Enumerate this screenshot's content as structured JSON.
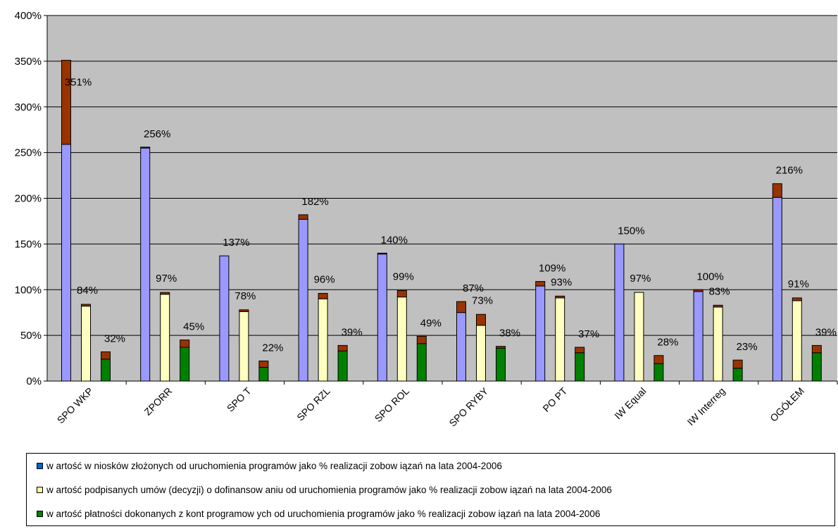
{
  "chart_data": {
    "type": "bar",
    "stacked_components": true,
    "categories": [
      "SPO WKP",
      "ZPORR",
      "SPO T",
      "SPO RZL",
      "SPO ROL",
      "SPO RYBY",
      "PO PT",
      "IW Equal",
      "IW Interreg",
      "OGÓŁEM"
    ],
    "ylim": [
      0,
      400
    ],
    "yticks": [
      "0%",
      "50%",
      "100%",
      "150%",
      "200%",
      "250%",
      "300%",
      "350%",
      "400%"
    ],
    "grid": true,
    "legend_placement": "bottom",
    "series": [
      {
        "name": "w artość w niosków złożonych od uruchomienia programów jako % realizacji zobow iązań na lata 2004-2006",
        "color": "#9999ff",
        "values": [
          351,
          256,
          137,
          182,
          140,
          87,
          109,
          150,
          100,
          216
        ],
        "base_values": [
          259,
          255,
          137,
          177,
          139,
          75,
          104,
          150,
          98,
          201
        ],
        "labels": [
          "351%",
          "256%",
          "137%",
          "182%",
          "140%",
          "87%",
          "109%",
          "150%",
          "100%",
          "216%"
        ]
      },
      {
        "name": "w artość podpisanych umów (decyzji) o dofinansow aniu od uruchomienia programów jako % realizacji zobow iązań na lata 2004-2006",
        "color": "#ffffc0",
        "values": [
          84,
          97,
          78,
          96,
          99,
          73,
          93,
          97,
          83,
          91
        ],
        "base_values": [
          82,
          95,
          76,
          90,
          92,
          61,
          91,
          97,
          81,
          88
        ],
        "labels": [
          "84%",
          "97%",
          "78%",
          "96%",
          "99%",
          "73%",
          "93%",
          "97%",
          "83%",
          "91%"
        ]
      },
      {
        "name": "w artość płatności dokonanych z kont programow ych od uruchomienia programów jako % realizacji zobow iązań na lata 2004-2006",
        "color": "#008000",
        "values": [
          32,
          45,
          22,
          39,
          49,
          38,
          37,
          28,
          23,
          39
        ],
        "base_values": [
          24,
          37,
          15,
          33,
          41,
          36,
          31,
          19,
          14,
          31
        ],
        "labels": [
          "32%",
          "45%",
          "22%",
          "39%",
          "49%",
          "38%",
          "37%",
          "28%",
          "23%",
          "39%"
        ]
      }
    ],
    "excess_color": "#993300",
    "legend_swatch_colors": [
      "#0066cc",
      "#ffff99",
      "#008000"
    ]
  }
}
